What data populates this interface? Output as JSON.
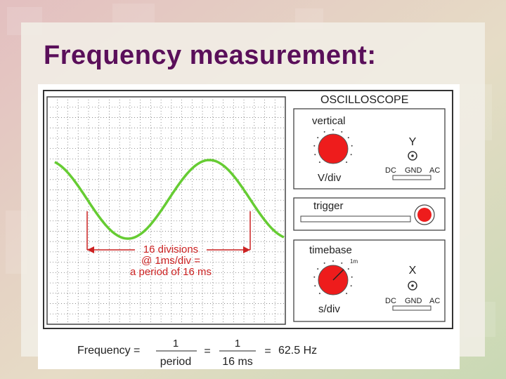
{
  "slide": {
    "title": "Frequency measurement:",
    "colors": {
      "title": "#5a0f5a",
      "waveform": "#66cc33",
      "annotation": "#cc2222",
      "knob": "#ee1c1c"
    }
  },
  "oscilloscope": {
    "title": "OSCILLOSCOPE",
    "vertical": {
      "label": "vertical",
      "knob_unit": "V/div"
    },
    "y_channel": {
      "label": "Y",
      "switch": [
        "DC",
        "GND",
        "AC"
      ]
    },
    "trigger": {
      "label": "trigger"
    },
    "timebase": {
      "label": "timebase",
      "knob_unit": "s/div",
      "knob_mark": "1m"
    },
    "x_channel": {
      "label": "X",
      "switch": [
        "DC",
        "GND",
        "AC"
      ]
    }
  },
  "annotation": {
    "lines": [
      "16 divisions",
      "@ 1ms/div =",
      "a period of 16 ms"
    ]
  },
  "formula": {
    "lhs": "Frequency =",
    "frac1": {
      "num": "1",
      "den": "period"
    },
    "eq2": "=",
    "frac2": {
      "num": "1",
      "den": "16 ms"
    },
    "eq3": "=",
    "result": "62.5 Hz"
  }
}
